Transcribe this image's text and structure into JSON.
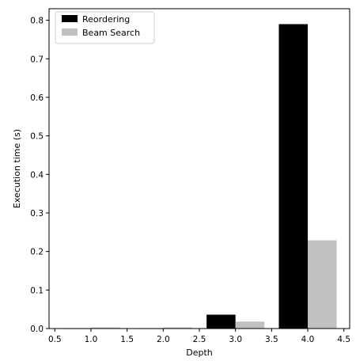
{
  "chart_data": {
    "type": "bar",
    "xlabel": "Depth",
    "ylabel": "Execution time (s)",
    "xlim": [
      0.42,
      4.58
    ],
    "ylim": [
      0,
      0.83
    ],
    "xticks": [
      "0.5",
      "1.0",
      "1.5",
      "2.0",
      "2.5",
      "3.0",
      "3.5",
      "4.0",
      "4.5"
    ],
    "xtick_values": [
      0.5,
      1.0,
      1.5,
      2.0,
      2.5,
      3.0,
      3.5,
      4.0,
      4.5
    ],
    "yticks": [
      "0.0",
      "0.1",
      "0.2",
      "0.3",
      "0.4",
      "0.5",
      "0.6",
      "0.7",
      "0.8"
    ],
    "ytick_values": [
      0.0,
      0.1,
      0.2,
      0.3,
      0.4,
      0.5,
      0.6,
      0.7,
      0.8
    ],
    "bar_width": 0.4,
    "series": [
      {
        "name": "Reordering",
        "color": "#000000",
        "x": [
          1,
          2,
          3,
          4
        ],
        "offset": -0.2,
        "values": [
          0.0005,
          0.0005,
          0.036,
          0.79
        ]
      },
      {
        "name": "Beam Search",
        "color": "#c0c0c0",
        "x": [
          1,
          2,
          3,
          4
        ],
        "offset": 0.2,
        "values": [
          0.003,
          0.003,
          0.018,
          0.229
        ]
      }
    ],
    "legend_position": "top-left",
    "grid": false
  }
}
